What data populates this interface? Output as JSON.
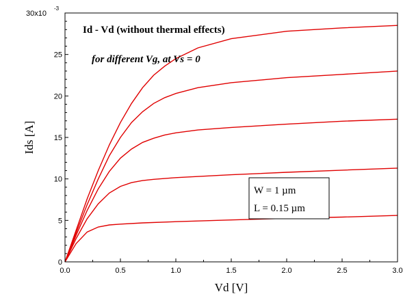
{
  "chart_data": {
    "type": "line",
    "title": "Id - Vd (without thermal effects)",
    "subtitle": "for different Vg, at Vs = 0",
    "xlabel": "Vd [V]",
    "ylabel": "Ids [A]",
    "xlim": [
      0.0,
      3.0
    ],
    "ylim": [
      0,
      30
    ],
    "y_multiplier_label": "30x10",
    "y_multiplier_exponent": "-3",
    "x_ticks": [
      "0.0",
      "0.5",
      "1.0",
      "1.5",
      "2.0",
      "2.5",
      "3.0"
    ],
    "y_ticks": [
      "0",
      "5",
      "10",
      "15",
      "20",
      "25"
    ],
    "annotation_box": [
      "W = 1 µm",
      "L = 0.15 µm"
    ],
    "line_color": "#e00000",
    "grid": false,
    "series": [
      {
        "x": [
          0,
          0.1,
          0.2,
          0.3,
          0.4,
          0.5,
          0.7,
          1.0,
          1.5,
          2.0,
          2.5,
          3.0
        ],
        "y": [
          0,
          2.2,
          3.6,
          4.2,
          4.45,
          4.55,
          4.7,
          4.85,
          5.05,
          5.25,
          5.4,
          5.6
        ]
      },
      {
        "x": [
          0,
          0.1,
          0.2,
          0.3,
          0.4,
          0.5,
          0.6,
          0.7,
          0.8,
          1.0,
          1.5,
          2.0,
          2.5,
          3.0
        ],
        "y": [
          0,
          2.8,
          5.2,
          7.0,
          8.3,
          9.1,
          9.55,
          9.8,
          9.95,
          10.15,
          10.5,
          10.8,
          11.05,
          11.3
        ]
      },
      {
        "x": [
          0,
          0.1,
          0.2,
          0.3,
          0.4,
          0.5,
          0.6,
          0.7,
          0.8,
          0.9,
          1.0,
          1.2,
          1.5,
          2.0,
          2.5,
          3.0
        ],
        "y": [
          0,
          3.2,
          6.2,
          8.8,
          10.9,
          12.5,
          13.6,
          14.4,
          14.9,
          15.3,
          15.55,
          15.9,
          16.2,
          16.6,
          16.95,
          17.2
        ]
      },
      {
        "x": [
          0,
          0.1,
          0.2,
          0.3,
          0.4,
          0.5,
          0.6,
          0.7,
          0.8,
          0.9,
          1.0,
          1.2,
          1.5,
          2.0,
          2.5,
          3.0
        ],
        "y": [
          0,
          3.5,
          6.9,
          10.0,
          12.8,
          15.0,
          16.8,
          18.1,
          19.1,
          19.8,
          20.3,
          21.0,
          21.6,
          22.2,
          22.6,
          23.0
        ]
      },
      {
        "x": [
          0,
          0.1,
          0.2,
          0.3,
          0.4,
          0.5,
          0.6,
          0.7,
          0.8,
          0.9,
          1.0,
          1.2,
          1.5,
          2.0,
          2.5,
          3.0
        ],
        "y": [
          0,
          3.8,
          7.6,
          11.0,
          14.1,
          16.8,
          19.1,
          21.0,
          22.5,
          23.6,
          24.5,
          25.8,
          26.9,
          27.8,
          28.2,
          28.5
        ]
      }
    ]
  }
}
